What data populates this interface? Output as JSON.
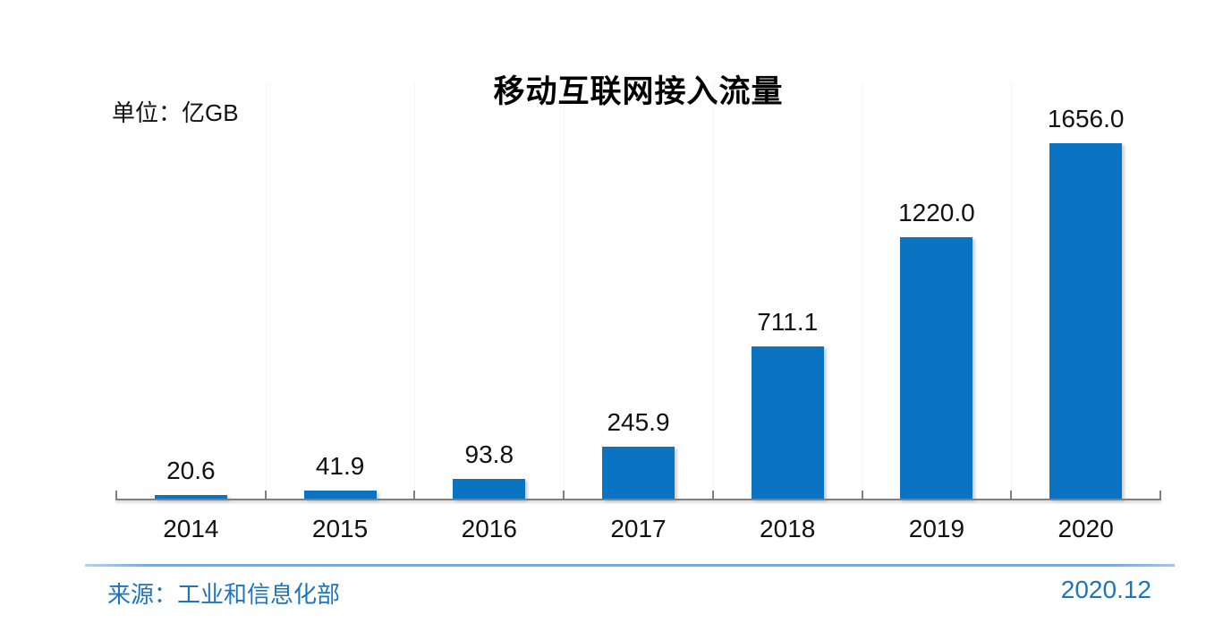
{
  "header": {
    "title": "移动互联网接入流量",
    "unit_label": "单位：亿GB"
  },
  "footer": {
    "source": "来源：工业和信息化部",
    "date": "2020.12"
  },
  "chart_data": {
    "type": "bar",
    "title": "移动互联网接入流量",
    "unit": "亿GB",
    "categories": [
      "2014",
      "2015",
      "2016",
      "2017",
      "2018",
      "2019",
      "2020"
    ],
    "values": [
      20.6,
      41.9,
      93.8,
      245.9,
      711.1,
      1220.0,
      1656.0
    ],
    "value_labels": [
      "20.6",
      "41.9",
      "93.8",
      "245.9",
      "711.1",
      "1220.0",
      "1656.0"
    ],
    "xlabel": "",
    "ylabel": "",
    "y_axis_visible": false,
    "legend": "none",
    "data_labels_position": "above-bar"
  },
  "colors": {
    "bar": "#0b74c2",
    "axis": "#7f7f7f",
    "footer_line": "#7ea7d9",
    "footer_text": "#1c75be",
    "text": "#111111",
    "background": "#ffffff"
  }
}
